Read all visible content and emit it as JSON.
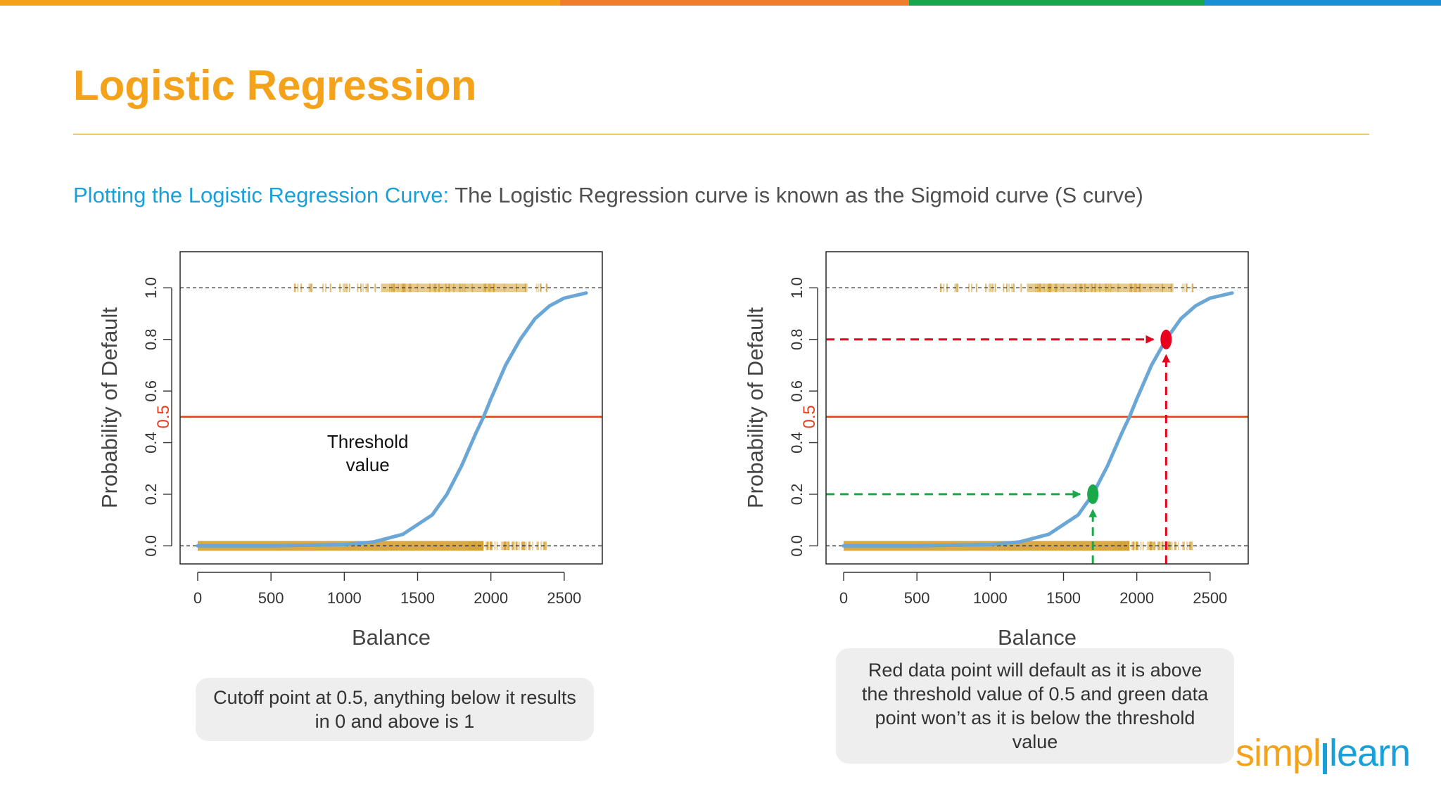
{
  "header": {
    "top_bar_colors": [
      "#f5a21b",
      "#f07d2c",
      "#17a64b",
      "#1a8fd6"
    ],
    "title": "Logistic Regression",
    "subtitle_lead": "Plotting the Logistic Regression Curve:",
    "subtitle_rest": " The Logistic Regression curve is known as the Sigmoid curve (S curve)"
  },
  "chart_data": [
    {
      "type": "line",
      "xlabel": "Balance",
      "ylabel": "Probability of Default",
      "xlim": [
        -120,
        2760
      ],
      "ylim": [
        -0.07,
        1.14
      ],
      "xticks": [
        0,
        500,
        1000,
        1500,
        2000,
        2500
      ],
      "yticks": [
        0.0,
        0.2,
        0.4,
        0.6,
        0.8,
        1.0
      ],
      "grid": false,
      "curve": {
        "x": [
          0,
          500,
          1000,
          1200,
          1400,
          1600,
          1700,
          1800,
          1900,
          1950,
          2000,
          2100,
          2200,
          2300,
          2400,
          2500,
          2650
        ],
        "y": [
          0.0,
          0.0,
          0.005,
          0.015,
          0.045,
          0.12,
          0.2,
          0.31,
          0.44,
          0.5,
          0.57,
          0.7,
          0.8,
          0.88,
          0.93,
          0.96,
          0.98
        ],
        "color": "#6aa6d6"
      },
      "reference_lines": [
        {
          "y": 0.0,
          "style": "dashed",
          "color": "#222222"
        },
        {
          "y": 1.0,
          "style": "dashed",
          "color": "#222222"
        }
      ],
      "threshold": {
        "y": 0.5,
        "label": "0.5",
        "color": "#e8401c"
      },
      "rug_bottom": {
        "y": 0.0,
        "x_from": 0,
        "x_to": 2400,
        "color": "#d4a030"
      },
      "rug_top": {
        "y": 1.0,
        "x_from": 650,
        "x_to": 2400,
        "color": "#d4a030"
      },
      "annotations": [
        {
          "text": "Threshold\nvalue",
          "x": 1160,
          "y": 0.38
        }
      ]
    },
    {
      "type": "line",
      "xlabel": "Balance",
      "ylabel": "Probability of Default",
      "xlim": [
        -120,
        2760
      ],
      "ylim": [
        -0.07,
        1.14
      ],
      "xticks": [
        0,
        500,
        1000,
        1500,
        2000,
        2500
      ],
      "yticks": [
        0.0,
        0.2,
        0.4,
        0.6,
        0.8,
        1.0
      ],
      "grid": false,
      "curve": {
        "x": [
          0,
          500,
          1000,
          1200,
          1400,
          1600,
          1700,
          1800,
          1900,
          1950,
          2000,
          2100,
          2200,
          2300,
          2400,
          2500,
          2650
        ],
        "y": [
          0.0,
          0.0,
          0.005,
          0.015,
          0.045,
          0.12,
          0.2,
          0.31,
          0.44,
          0.5,
          0.57,
          0.7,
          0.8,
          0.88,
          0.93,
          0.96,
          0.98
        ],
        "color": "#6aa6d6"
      },
      "reference_lines": [
        {
          "y": 0.0,
          "style": "dashed",
          "color": "#222222"
        },
        {
          "y": 1.0,
          "style": "dashed",
          "color": "#222222"
        }
      ],
      "threshold": {
        "y": 0.5,
        "label": "0.5",
        "color": "#e8401c"
      },
      "rug_bottom": {
        "y": 0.0,
        "x_from": 0,
        "x_to": 2400,
        "color": "#d4a030"
      },
      "rug_top": {
        "y": 1.0,
        "x_from": 650,
        "x_to": 2400,
        "color": "#d4a030"
      },
      "points": [
        {
          "x": 1700,
          "y": 0.2,
          "color": "#19a84a"
        },
        {
          "x": 2200,
          "y": 0.8,
          "color": "#e8001c"
        }
      ]
    }
  ],
  "captions": {
    "left": "Cutoff point at 0.5, anything below it results in 0 and above is 1",
    "right": "Red data point will default as it is above the threshold value of 0.5 and green data point won’t as it is below the threshold value"
  },
  "logo": {
    "part1": "simpl",
    "part2": "learn"
  }
}
